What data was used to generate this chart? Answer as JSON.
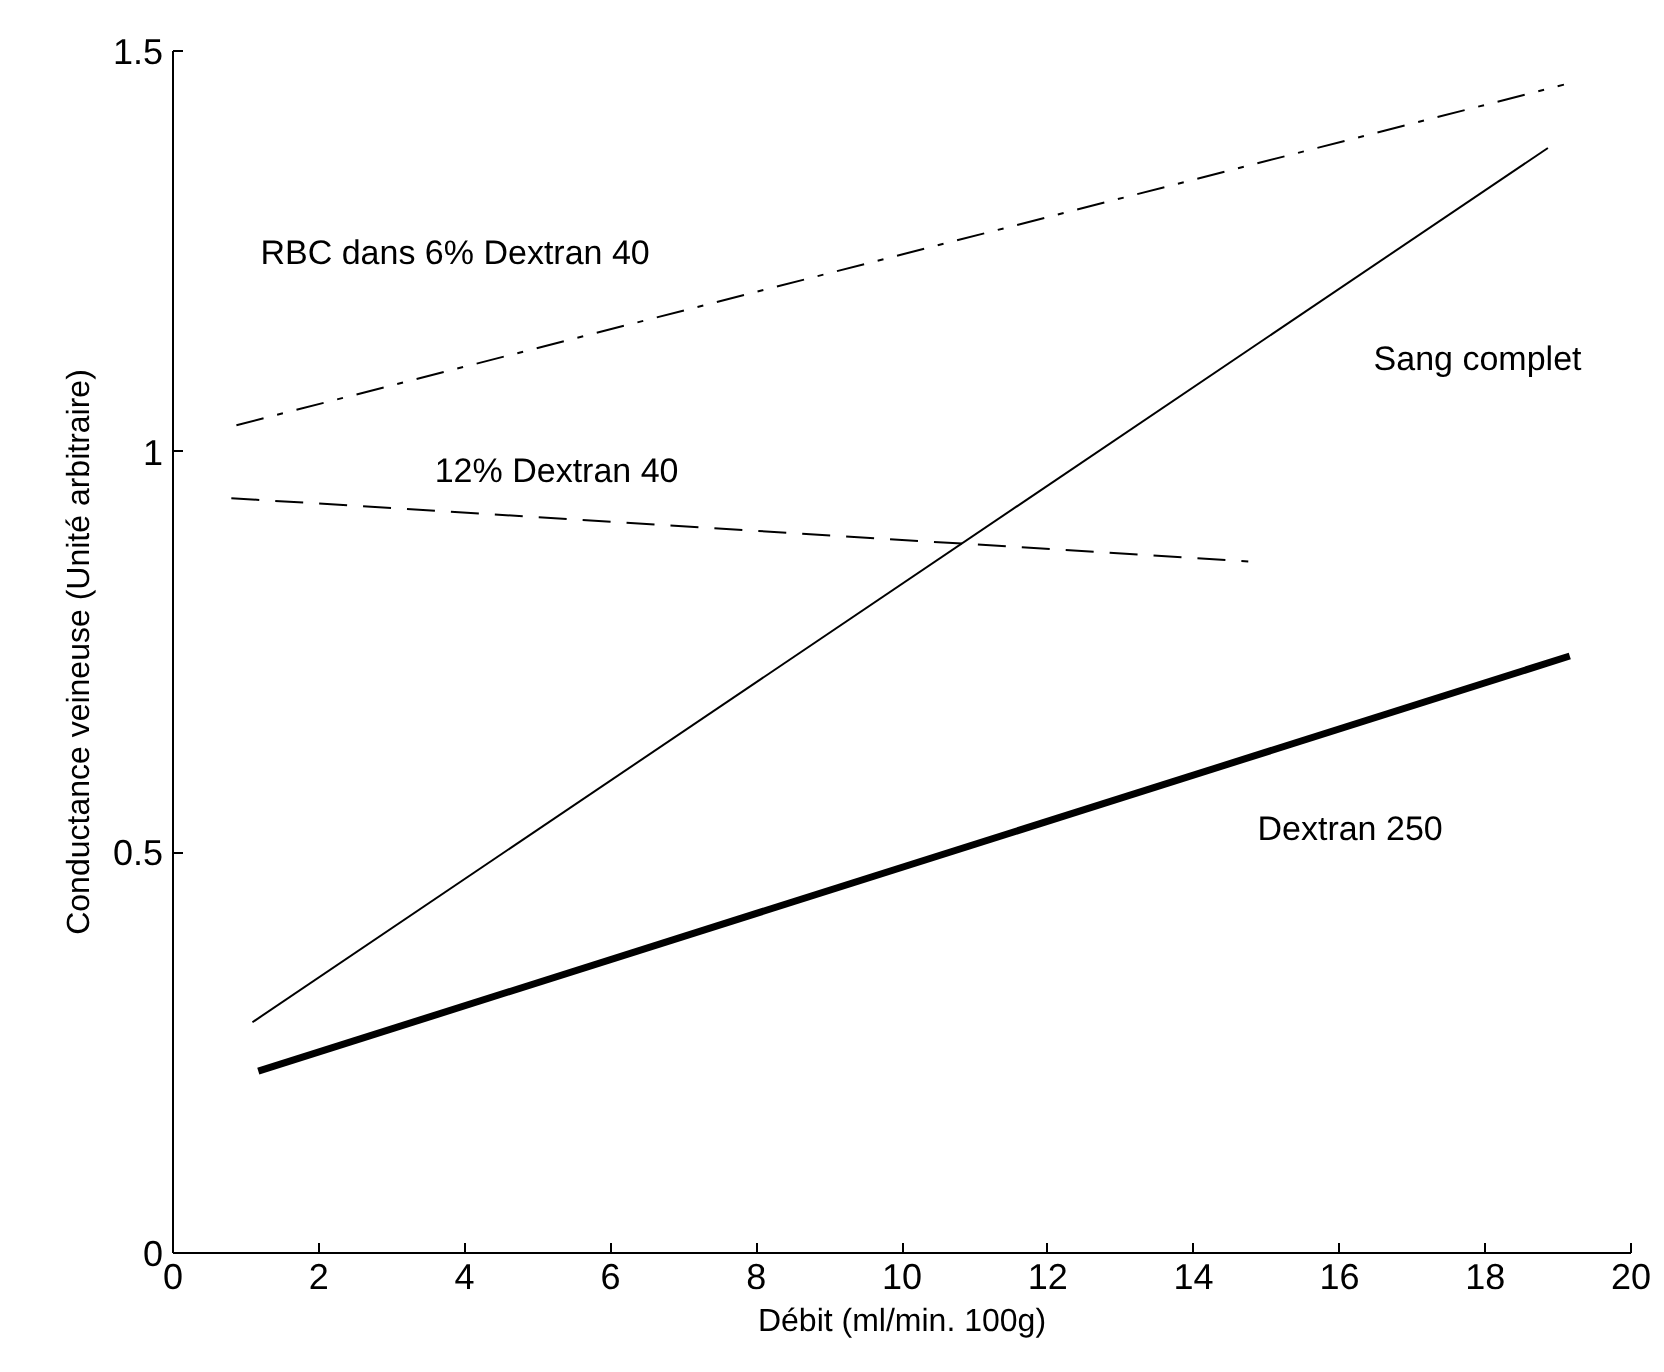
{
  "chart_data": {
    "type": "line",
    "xlabel": "Débit (ml/min. 100g)",
    "ylabel": "Conductance veineuse (Unité arbitraire)",
    "xlim": [
      0,
      20
    ],
    "xticks": [
      0,
      2,
      4,
      6,
      8,
      10,
      12,
      14,
      16,
      18,
      20
    ],
    "ylim": [
      0,
      1.5
    ],
    "yticks": [
      0,
      0.5,
      1,
      1.5
    ],
    "grid": false,
    "legend": false,
    "series": [
      {
        "name": "RBC dans 6% Dextran 40",
        "color": "#000000",
        "line_style": "dashdot",
        "x": [
          0.87,
          19.08
        ],
        "values": [
          1.033,
          1.458
        ]
      },
      {
        "name": "12% Dextran 40",
        "color": "#000000",
        "line_style": "dashed",
        "x": [
          0.8,
          14.75
        ],
        "values": [
          0.942,
          0.863
        ]
      },
      {
        "name": "Sang complet",
        "color": "#000000",
        "line_style": "solid",
        "x": [
          1.09,
          18.86
        ],
        "values": [
          0.288,
          1.379
        ]
      },
      {
        "name": "Dextran 250",
        "color": "#000000",
        "line_style": "solid",
        "x": [
          1.17,
          19.16
        ],
        "values": [
          0.227,
          0.745
        ]
      }
    ]
  }
}
